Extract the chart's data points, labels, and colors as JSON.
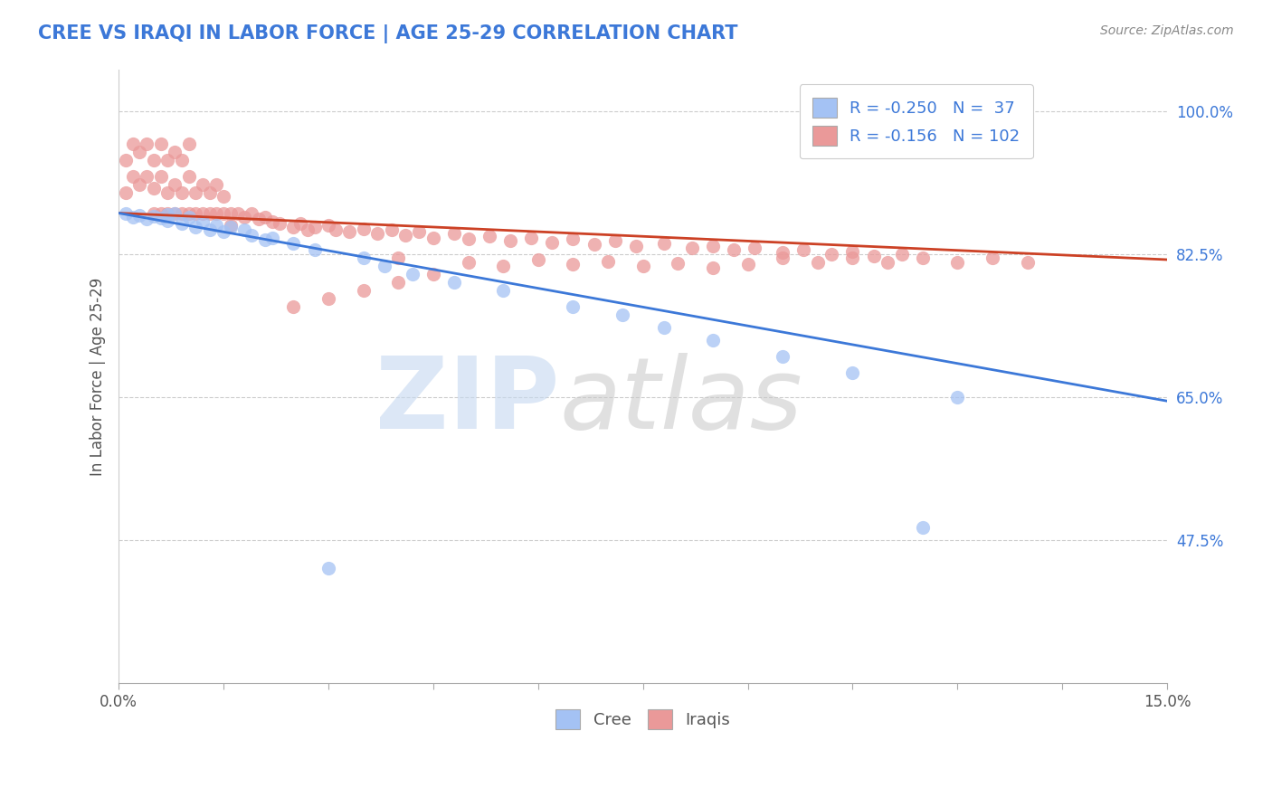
{
  "title": "CREE VS IRAQI IN LABOR FORCE | AGE 25-29 CORRELATION CHART",
  "source_text": "Source: ZipAtlas.com",
  "ylabel": "In Labor Force | Age 25-29",
  "xlim": [
    0.0,
    0.15
  ],
  "ylim": [
    0.3,
    1.05
  ],
  "ytick_labels_right": [
    "100.0%",
    "82.5%",
    "65.0%",
    "47.5%"
  ],
  "ytick_vals_right": [
    1.0,
    0.825,
    0.65,
    0.475
  ],
  "cree_R": -0.25,
  "cree_N": 37,
  "iraqi_R": -0.156,
  "iraqi_N": 102,
  "cree_color": "#a4c2f4",
  "iraqi_color": "#ea9999",
  "cree_line_color": "#3c78d8",
  "iraqi_line_color": "#cc4125",
  "legend_label_cree": "Cree",
  "legend_label_iraqi": "Iraqis",
  "cree_line_x0": 0.0,
  "cree_line_y0": 0.875,
  "cree_line_x1": 0.15,
  "cree_line_y1": 0.645,
  "iraqi_line_x0": 0.0,
  "iraqi_line_y0": 0.875,
  "iraqi_line_x1": 0.15,
  "iraqi_line_y1": 0.818,
  "cree_x": [
    0.001,
    0.002,
    0.003,
    0.004,
    0.005,
    0.006,
    0.007,
    0.007,
    0.008,
    0.009,
    0.01,
    0.011,
    0.012,
    0.013,
    0.014,
    0.015,
    0.016,
    0.018,
    0.019,
    0.021,
    0.022,
    0.025,
    0.028,
    0.035,
    0.038,
    0.042,
    0.048,
    0.055,
    0.065,
    0.072,
    0.078,
    0.085,
    0.095,
    0.105,
    0.03,
    0.12,
    0.115
  ],
  "cree_y": [
    0.875,
    0.87,
    0.872,
    0.868,
    0.871,
    0.869,
    0.873,
    0.866,
    0.875,
    0.862,
    0.87,
    0.858,
    0.865,
    0.855,
    0.86,
    0.852,
    0.858,
    0.855,
    0.848,
    0.842,
    0.845,
    0.838,
    0.83,
    0.82,
    0.81,
    0.8,
    0.79,
    0.78,
    0.76,
    0.75,
    0.735,
    0.72,
    0.7,
    0.68,
    0.44,
    0.65,
    0.49
  ],
  "iraqi_x": [
    0.001,
    0.001,
    0.002,
    0.002,
    0.003,
    0.003,
    0.004,
    0.004,
    0.005,
    0.005,
    0.005,
    0.006,
    0.006,
    0.006,
    0.007,
    0.007,
    0.007,
    0.008,
    0.008,
    0.008,
    0.009,
    0.009,
    0.009,
    0.01,
    0.01,
    0.01,
    0.011,
    0.011,
    0.012,
    0.012,
    0.013,
    0.013,
    0.014,
    0.014,
    0.015,
    0.015,
    0.016,
    0.016,
    0.017,
    0.018,
    0.019,
    0.02,
    0.021,
    0.022,
    0.023,
    0.025,
    0.026,
    0.027,
    0.028,
    0.03,
    0.031,
    0.033,
    0.035,
    0.037,
    0.039,
    0.041,
    0.043,
    0.045,
    0.048,
    0.05,
    0.053,
    0.056,
    0.059,
    0.062,
    0.065,
    0.068,
    0.071,
    0.074,
    0.078,
    0.082,
    0.085,
    0.088,
    0.091,
    0.095,
    0.098,
    0.102,
    0.105,
    0.108,
    0.112,
    0.04,
    0.05,
    0.055,
    0.06,
    0.065,
    0.07,
    0.075,
    0.08,
    0.085,
    0.09,
    0.095,
    0.1,
    0.105,
    0.11,
    0.115,
    0.12,
    0.125,
    0.13,
    0.035,
    0.04,
    0.045,
    0.025,
    0.03
  ],
  "iraqi_y": [
    0.9,
    0.94,
    0.92,
    0.96,
    0.91,
    0.95,
    0.92,
    0.96,
    0.905,
    0.94,
    0.875,
    0.92,
    0.96,
    0.875,
    0.9,
    0.94,
    0.875,
    0.91,
    0.95,
    0.875,
    0.9,
    0.94,
    0.875,
    0.92,
    0.96,
    0.875,
    0.9,
    0.875,
    0.91,
    0.875,
    0.9,
    0.875,
    0.91,
    0.875,
    0.895,
    0.875,
    0.875,
    0.86,
    0.875,
    0.87,
    0.875,
    0.868,
    0.87,
    0.865,
    0.862,
    0.858,
    0.862,
    0.855,
    0.858,
    0.86,
    0.855,
    0.852,
    0.856,
    0.85,
    0.854,
    0.848,
    0.852,
    0.845,
    0.85,
    0.843,
    0.847,
    0.841,
    0.845,
    0.839,
    0.843,
    0.837,
    0.841,
    0.835,
    0.838,
    0.832,
    0.835,
    0.83,
    0.832,
    0.827,
    0.83,
    0.825,
    0.828,
    0.822,
    0.825,
    0.82,
    0.815,
    0.81,
    0.818,
    0.812,
    0.816,
    0.81,
    0.814,
    0.808,
    0.812,
    0.82,
    0.815,
    0.82,
    0.815,
    0.82,
    0.815,
    0.82,
    0.815,
    0.78,
    0.79,
    0.8,
    0.76,
    0.77
  ]
}
